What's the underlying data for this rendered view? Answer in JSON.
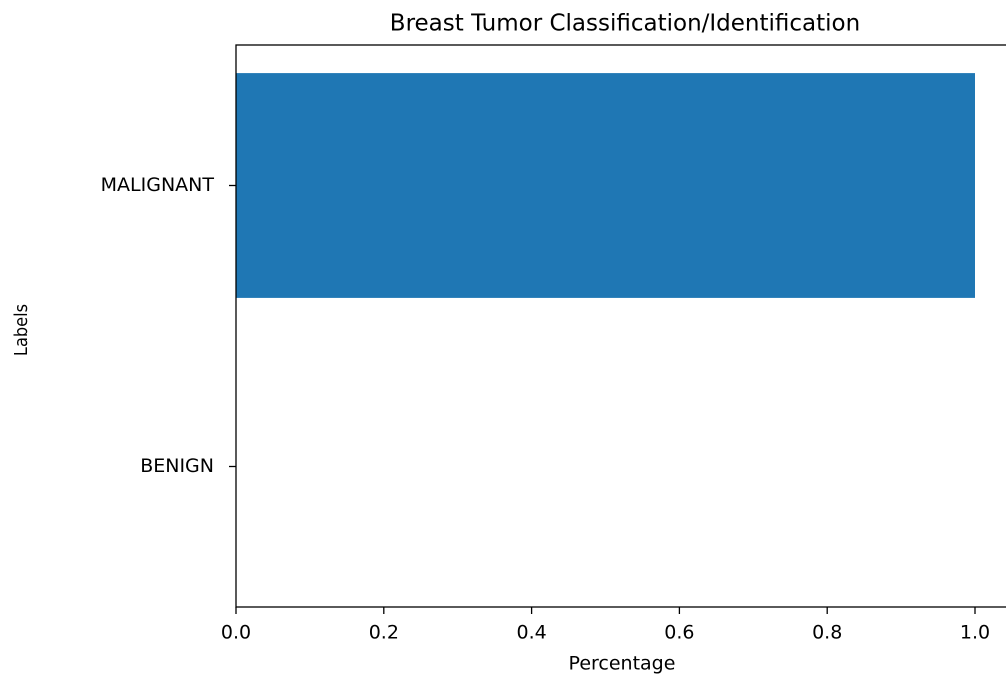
{
  "chart_data": {
    "type": "barh",
    "title": "Breast Tumor Classification/Identification",
    "xlabel": "Percentage",
    "ylabel": "Labels",
    "categories": [
      "BENIGN",
      "MALIGNANT"
    ],
    "values": [
      0,
      1.0
    ],
    "color": "#1f77b4",
    "xlim": [
      0,
      1.05
    ],
    "xticks": [
      {
        "value": 0,
        "label": "0.0"
      },
      0.2,
      0.4,
      0.6,
      0.8,
      {
        "value": 1.0,
        "label": "1.0"
      }
    ]
  }
}
